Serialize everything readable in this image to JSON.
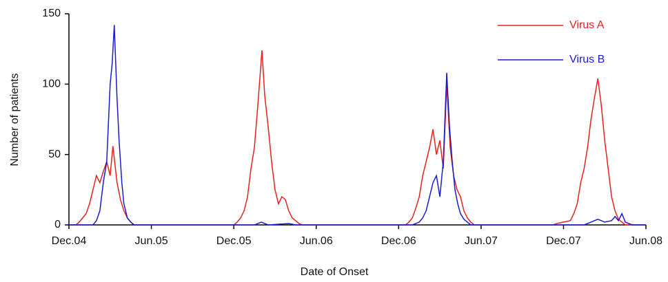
{
  "chart_data": {
    "type": "line",
    "xlabel": "Date of Onset",
    "ylabel": "Number of patients",
    "xlim": [
      0,
      42
    ],
    "ylim": [
      0,
      150
    ],
    "xticks": [
      {
        "value": 0,
        "label": "Dec.04"
      },
      {
        "value": 6,
        "label": "Jun.05"
      },
      {
        "value": 12,
        "label": "Dec.05"
      },
      {
        "value": 18,
        "label": "Jun.06"
      },
      {
        "value": 24,
        "label": "Dec.06"
      },
      {
        "value": 30,
        "label": "Jun.07"
      },
      {
        "value": 36,
        "label": "Dec.07"
      },
      {
        "value": 42,
        "label": "Jun.08"
      }
    ],
    "yticks": [
      0,
      50,
      100,
      150
    ],
    "grid": false,
    "legend": "upper right",
    "series": [
      {
        "name": "Virus A",
        "color": "#e8201e",
        "x": [
          0,
          0.5,
          0.75,
          1.0,
          1.25,
          1.5,
          1.75,
          2.0,
          2.25,
          2.5,
          2.75,
          3.0,
          3.2,
          3.5,
          3.75,
          4.0,
          4.25,
          4.5,
          4.75,
          12.0,
          12.25,
          12.5,
          12.75,
          13.0,
          13.25,
          13.5,
          13.75,
          14.05,
          14.25,
          14.5,
          14.75,
          15.0,
          15.25,
          15.5,
          15.75,
          16.0,
          16.25,
          16.5,
          16.75,
          17.0,
          24.5,
          24.75,
          25.0,
          25.25,
          25.5,
          25.75,
          26.0,
          26.25,
          26.5,
          26.75,
          27.0,
          27.25,
          27.5,
          27.75,
          28.0,
          28.25,
          28.5,
          28.75,
          29.0,
          29.25,
          29.5,
          35.25,
          35.5,
          36.0,
          36.5,
          36.75,
          37.0,
          37.25,
          37.5,
          37.75,
          38.0,
          38.25,
          38.5,
          38.75,
          39.0,
          39.25,
          39.5,
          39.75,
          40.0,
          40.25,
          40.5,
          42
        ],
        "values": [
          0,
          0,
          2,
          5,
          8,
          15,
          25,
          35,
          30,
          38,
          45,
          35,
          56,
          30,
          18,
          10,
          5,
          2,
          0,
          0,
          2,
          5,
          10,
          20,
          40,
          55,
          85,
          124,
          92,
          70,
          45,
          25,
          15,
          20,
          18,
          10,
          5,
          3,
          1,
          0,
          0,
          2,
          5,
          12,
          20,
          35,
          45,
          55,
          68,
          50,
          60,
          40,
          100,
          55,
          35,
          25,
          20,
          10,
          5,
          2,
          0,
          0,
          1,
          2,
          3,
          8,
          15,
          30,
          40,
          55,
          75,
          90,
          104,
          85,
          60,
          40,
          20,
          10,
          4,
          2,
          0,
          0
        ]
      },
      {
        "name": "Virus B",
        "color": "#1a1ad0",
        "x": [
          0,
          1.75,
          2.0,
          2.25,
          2.5,
          2.75,
          3.0,
          3.15,
          3.3,
          3.5,
          3.65,
          3.85,
          4.0,
          4.25,
          4.5,
          4.75,
          13.5,
          14.0,
          14.5,
          16,
          16.5,
          25.0,
          25.5,
          25.75,
          26.0,
          26.25,
          26.5,
          26.75,
          27.0,
          27.25,
          27.5,
          27.7,
          27.9,
          28.1,
          28.3,
          28.5,
          28.75,
          29.0,
          29.25,
          37.5,
          38.0,
          38.5,
          39.0,
          39.5,
          39.75,
          40.0,
          40.25,
          40.5,
          41,
          42
        ],
        "values": [
          0,
          0,
          3,
          10,
          30,
          45,
          100,
          115,
          142,
          90,
          60,
          30,
          15,
          5,
          2,
          0,
          0,
          2,
          0,
          1,
          0,
          0,
          2,
          5,
          10,
          20,
          30,
          35,
          20,
          45,
          108,
          70,
          45,
          25,
          15,
          8,
          4,
          2,
          0,
          0,
          2,
          4,
          2,
          3,
          6,
          3,
          8,
          2,
          0,
          0
        ]
      }
    ]
  }
}
